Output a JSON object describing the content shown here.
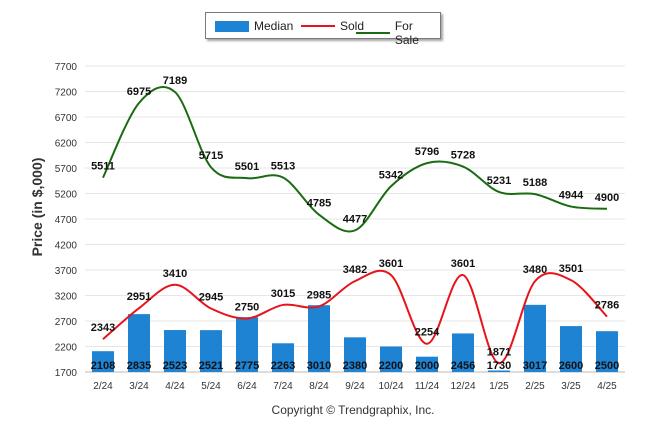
{
  "legend": {
    "median_label": "Median",
    "sold_label": "Sold",
    "forsale_label": "For Sale"
  },
  "colors": {
    "median": "#1f83d4",
    "sold": "#e8141b",
    "forsale": "#1a6b12"
  },
  "footer": {
    "copyright": "Copyright © Trendgraphix, Inc."
  },
  "chart_data": {
    "type": "bar",
    "ylabel": "Price (in $,000)",
    "xlabel": "",
    "ylim": [
      1700,
      7700
    ],
    "yticks": [
      1700,
      2200,
      2700,
      3200,
      3700,
      4200,
      4700,
      5200,
      5700,
      6200,
      6700,
      7200,
      7700
    ],
    "grid": true,
    "legend_position": "top-center",
    "categories": [
      "2/24",
      "3/24",
      "4/24",
      "5/24",
      "6/24",
      "7/24",
      "8/24",
      "9/24",
      "10/24",
      "11/24",
      "12/24",
      "1/25",
      "2/25",
      "3/25",
      "4/25"
    ],
    "series": [
      {
        "name": "Median",
        "kind": "bar",
        "values": [
          2108,
          2835,
          2523,
          2521,
          2775,
          2263,
          3010,
          2380,
          2200,
          2000,
          2456,
          1730,
          3017,
          2600,
          2500
        ]
      },
      {
        "name": "Sold",
        "kind": "line",
        "values": [
          2343,
          2951,
          3410,
          2945,
          2750,
          3015,
          2985,
          3482,
          3601,
          2254,
          3601,
          1871,
          3480,
          3501,
          2786
        ]
      },
      {
        "name": "For Sale",
        "kind": "line",
        "values": [
          5511,
          6975,
          7189,
          5715,
          5501,
          5513,
          4785,
          4477,
          5342,
          5796,
          5728,
          5231,
          5188,
          4944,
          4900
        ]
      }
    ]
  }
}
